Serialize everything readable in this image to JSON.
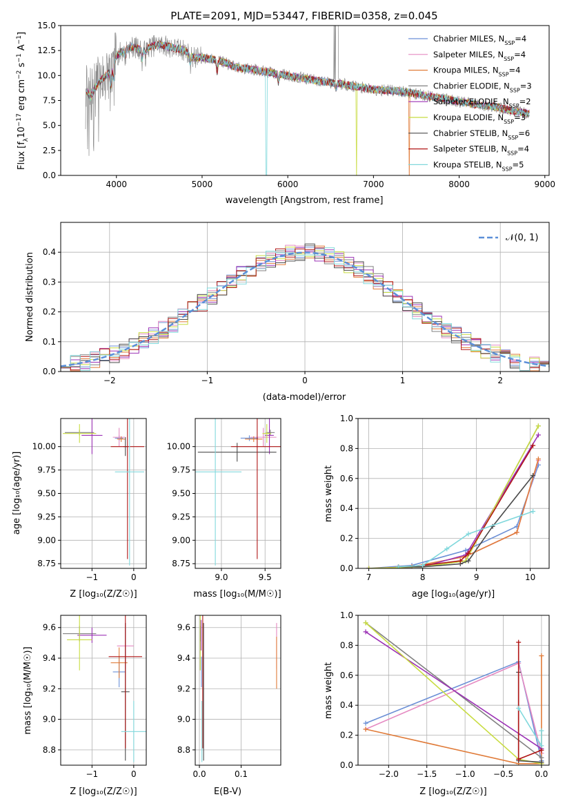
{
  "colors": {
    "chabrier_miles": "#6b8fd6",
    "salpeter_miles": "#e58ac2",
    "kroupa_miles": "#e07b39",
    "chabrier_elodie": "#808080",
    "salpeter_elodie": "#9b30b5",
    "kroupa_elodie": "#c8dc40",
    "chabrier_stelib": "#4a4a4a",
    "salpeter_stelib": "#b01515",
    "kroupa_stelib": "#80d8dc",
    "normal_curve": "#5b8fd8"
  },
  "chart_data": [
    {
      "id": "spectrum",
      "type": "line",
      "title": "PLATE=2091, MJD=53447, FIBERID=0358, z=0.045",
      "xlabel": "wavelength [Angstrom, rest frame]",
      "ylabel_parts": [
        "Flux [f",
        "λ",
        "10",
        "−17",
        " erg cm",
        "−2",
        " s",
        "−1",
        " A",
        "−1",
        "]"
      ],
      "xlim": [
        3350,
        9050
      ],
      "ylim": [
        0,
        15
      ],
      "xticks": [
        "4000",
        "5000",
        "6000",
        "7000",
        "8000",
        "9000"
      ],
      "yticks": [
        "0.0",
        "2.5",
        "5.0",
        "7.5",
        "10.0",
        "12.5",
        "15.0"
      ],
      "legend": [
        {
          "name": "Chabrier MILES, N",
          "sub": "SSP",
          "eq": "=4",
          "color": "#6b8fd6"
        },
        {
          "name": "Salpeter MILES, N",
          "sub": "SSP",
          "eq": "=4",
          "color": "#e58ac2"
        },
        {
          "name": "Kroupa MILES, N",
          "sub": "SSP",
          "eq": "=4",
          "color": "#e07b39"
        },
        {
          "name": "Chabrier ELODIE, N",
          "sub": "SSP",
          "eq": "=3",
          "color": "#808080"
        },
        {
          "name": "Salpeter ELODIE, N",
          "sub": "SSP",
          "eq": "=2",
          "color": "#9b30b5"
        },
        {
          "name": "Kroupa ELODIE, N",
          "sub": "SSP",
          "eq": "=3",
          "color": "#c8dc40"
        },
        {
          "name": "Chabrier STELIB, N",
          "sub": "SSP",
          "eq": "=6",
          "color": "#4a4a4a"
        },
        {
          "name": "Salpeter STELIB, N",
          "sub": "SSP",
          "eq": "=4",
          "color": "#b01515"
        },
        {
          "name": "Kroupa STELIB, N",
          "sub": "SSP",
          "eq": "=5",
          "color": "#80d8dc"
        }
      ],
      "model_continuum": [
        [
          3650,
          8.5
        ],
        [
          3700,
          7.8
        ],
        [
          3750,
          8.8
        ],
        [
          3850,
          9.8
        ],
        [
          3950,
          10.5
        ],
        [
          4000,
          12.0
        ],
        [
          4100,
          12.6
        ],
        [
          4200,
          12.9
        ],
        [
          4300,
          12.5
        ],
        [
          4400,
          12.9
        ],
        [
          4500,
          13.1
        ],
        [
          4600,
          12.9
        ],
        [
          4700,
          12.7
        ],
        [
          4800,
          12.5
        ],
        [
          4900,
          11.8
        ],
        [
          5000,
          11.8
        ],
        [
          5200,
          11.5
        ],
        [
          5400,
          10.8
        ],
        [
          5600,
          10.6
        ],
        [
          5800,
          10.3
        ],
        [
          6000,
          10.0
        ],
        [
          6200,
          9.7
        ],
        [
          6400,
          9.4
        ],
        [
          6600,
          9.2
        ],
        [
          6800,
          8.9
        ],
        [
          7000,
          8.6
        ],
        [
          7200,
          8.5
        ],
        [
          7400,
          8.3
        ],
        [
          7600,
          8.0
        ],
        [
          7800,
          7.7
        ],
        [
          8000,
          7.4
        ],
        [
          8200,
          7.1
        ],
        [
          8400,
          6.9
        ],
        [
          8600,
          6.5
        ],
        [
          8800,
          6.2
        ]
      ]
    },
    {
      "id": "residuals",
      "type": "histogram",
      "xlabel": "(data-model)/error",
      "ylabel": "Normed distribution",
      "xlim": [
        -2.5,
        2.5
      ],
      "ylim": [
        0,
        0.5
      ],
      "xticks": [
        "−2",
        "−1",
        "0",
        "1",
        "2"
      ],
      "yticks": [
        "0.0",
        "0.1",
        "0.2",
        "0.3",
        "0.4"
      ],
      "legend": [
        {
          "name": "𝒩(0, 1)",
          "style": "dashed",
          "color": "#5b8fd8"
        }
      ],
      "bin_width": 0.1
    },
    {
      "id": "age-vs-Z",
      "type": "scatter",
      "xlabel": "Z [log₁₀(Z/Z☉)]",
      "ylabel": "age  [log₁₀(age/yr)]",
      "xlim": [
        -1.75,
        0.3
      ],
      "ylim": [
        8.7,
        10.3
      ],
      "xticks": [
        "−1",
        "0"
      ],
      "yticks": [
        "8.75",
        "9.00",
        "9.25",
        "9.50",
        "9.75",
        "10.00"
      ],
      "points": [
        {
          "series": "Chabrier MILES",
          "x": -0.35,
          "y": 10.09,
          "xerr": 0.1,
          "yerr": 0.03,
          "color": "#6b8fd6"
        },
        {
          "series": "Salpeter MILES",
          "x": -0.35,
          "y": 10.1,
          "xerr": 0.15,
          "yerr": 0.1,
          "color": "#e58ac2"
        },
        {
          "series": "Kroupa MILES",
          "x": -0.3,
          "y": 10.08,
          "xerr": 0.1,
          "yerr": 0.03,
          "color": "#e07b39"
        },
        {
          "series": "Chabrier ELODIE",
          "x": -1.3,
          "y": 10.15,
          "xerr": 0.35,
          "yerr": 0.03,
          "color": "#808080"
        },
        {
          "series": "Salpeter ELODIE",
          "x": -1.0,
          "y": 10.12,
          "xerr": 0.25,
          "yerr": 0.2,
          "color": "#9b30b5"
        },
        {
          "series": "Kroupa ELODIE",
          "x": -1.3,
          "y": 10.14,
          "xerr": 0.4,
          "yerr": 0.1,
          "color": "#c8dc40"
        },
        {
          "series": "Chabrier STELIB",
          "x": -0.2,
          "y": 10.0,
          "xerr": 0.05,
          "yerr": 0.1,
          "color": "#4a4a4a"
        },
        {
          "series": "Salpeter STELIB",
          "x": -0.15,
          "y": 10.0,
          "xerr": 0.4,
          "yerr": 1.2,
          "color": "#b01515"
        },
        {
          "series": "Kroupa STELIB",
          "x": -0.1,
          "y": 9.73,
          "xerr": 0.35,
          "yerr": 1.0,
          "color": "#80d8dc"
        }
      ]
    },
    {
      "id": "age-vs-mass",
      "type": "scatter",
      "xlabel": "mass [log₁₀(M/M☉)]",
      "ylabel": "",
      "xlim": [
        8.7,
        9.68
      ],
      "ylim": [
        8.7,
        10.3
      ],
      "xticks": [
        "9.0",
        "9.5"
      ],
      "yticks": [
        "8.75",
        "9.00",
        "9.25",
        "9.50",
        "9.75",
        "10.00"
      ],
      "points": [
        {
          "series": "Chabrier MILES",
          "x": 9.32,
          "y": 10.09,
          "xerr": 0.1,
          "yerr": 0.03,
          "color": "#6b8fd6"
        },
        {
          "series": "Salpeter MILES",
          "x": 9.48,
          "y": 10.1,
          "xerr": 0.15,
          "yerr": 0.1,
          "color": "#e58ac2"
        },
        {
          "series": "Kroupa MILES",
          "x": 9.37,
          "y": 10.08,
          "xerr": 0.1,
          "yerr": 0.03,
          "color": "#e07b39"
        },
        {
          "series": "Chabrier ELODIE",
          "x": 9.56,
          "y": 10.15,
          "xerr": 0.05,
          "yerr": 0.03,
          "color": "#808080"
        },
        {
          "series": "Salpeter ELODIE",
          "x": 9.55,
          "y": 10.12,
          "xerr": 0.05,
          "yerr": 0.2,
          "color": "#9b30b5"
        },
        {
          "series": "Kroupa ELODIE",
          "x": 9.52,
          "y": 10.14,
          "xerr": 0.05,
          "yerr": 0.1,
          "color": "#c8dc40"
        },
        {
          "series": "Chabrier STELIB",
          "x": 9.18,
          "y": 9.94,
          "xerr": 0.45,
          "yerr": 0.1,
          "color": "#4a4a4a"
        },
        {
          "series": "Salpeter STELIB",
          "x": 9.41,
          "y": 10.0,
          "xerr": 0.3,
          "yerr": 1.2,
          "color": "#b01515"
        },
        {
          "series": "Kroupa STELIB",
          "x": 8.93,
          "y": 9.73,
          "xerr": 0.3,
          "yerr": 1.0,
          "color": "#80d8dc"
        }
      ]
    },
    {
      "id": "massweight-vs-age",
      "type": "line",
      "xlabel": "age  [log₁₀(age/yr)]",
      "ylabel": "mass weight",
      "xlim": [
        6.8,
        10.35
      ],
      "ylim": [
        0,
        1
      ],
      "xticks": [
        "7",
        "8",
        "9",
        "10"
      ],
      "yticks": [
        "0.0",
        "0.2",
        "0.4",
        "0.6",
        "0.8",
        "1.0"
      ],
      "series": [
        {
          "name": "Chabrier MILES",
          "color": "#6b8fd6",
          "x": [
            7.0,
            7.8,
            8.8,
            9.75,
            10.15
          ],
          "y": [
            0.0,
            0.02,
            0.12,
            0.28,
            0.69
          ]
        },
        {
          "name": "Salpeter MILES",
          "color": "#e58ac2",
          "x": [
            7.0,
            7.8,
            8.8,
            9.75,
            10.15
          ],
          "y": [
            0.0,
            0.01,
            0.08,
            0.24,
            0.72
          ]
        },
        {
          "name": "Kroupa MILES",
          "color": "#e07b39",
          "x": [
            7.0,
            7.8,
            8.8,
            9.75,
            10.15
          ],
          "y": [
            0.0,
            0.01,
            0.08,
            0.24,
            0.73
          ]
        },
        {
          "name": "Chabrier ELODIE",
          "color": "#808080",
          "x": [
            7.0,
            8.0,
            8.8,
            10.15
          ],
          "y": [
            0.0,
            0.01,
            0.05,
            0.95
          ]
        },
        {
          "name": "Salpeter ELODIE",
          "color": "#9b30b5",
          "x": [
            7.0,
            8.0,
            8.8,
            10.15
          ],
          "y": [
            0.0,
            0.01,
            0.09,
            0.89
          ]
        },
        {
          "name": "Kroupa ELODIE",
          "color": "#c8dc40",
          "x": [
            7.0,
            8.0,
            8.8,
            10.15
          ],
          "y": [
            0.0,
            0.01,
            0.05,
            0.95
          ]
        },
        {
          "name": "Chabrier STELIB",
          "color": "#4a4a4a",
          "x": [
            7.55,
            8.0,
            8.7,
            8.85,
            9.3,
            10.05
          ],
          "y": [
            0.01,
            0.01,
            0.03,
            0.05,
            0.28,
            0.62
          ]
        },
        {
          "name": "Salpeter STELIB",
          "color": "#b01515",
          "x": [
            7.55,
            8.0,
            8.7,
            8.85,
            10.05
          ],
          "y": [
            0.01,
            0.02,
            0.05,
            0.1,
            0.82
          ]
        },
        {
          "name": "Kroupa STELIB",
          "color": "#80d8dc",
          "x": [
            7.55,
            8.0,
            8.45,
            8.85,
            10.05
          ],
          "y": [
            0.01,
            0.02,
            0.13,
            0.23,
            0.38
          ]
        }
      ]
    },
    {
      "id": "mass-vs-Z",
      "type": "scatter",
      "xlabel": "Z [log₁₀(Z/Z☉)]",
      "ylabel": "mass [log₁₀(M/M☉)]",
      "xlim": [
        -1.75,
        0.3
      ],
      "ylim": [
        8.7,
        9.68
      ],
      "xticks": [
        "−1",
        "0"
      ],
      "yticks": [
        "8.8",
        "9.0",
        "9.2",
        "9.4",
        "9.6"
      ],
      "points": [
        {
          "series": "Chabrier MILES",
          "x": -0.35,
          "y": 9.31,
          "xerr": 0.15,
          "yerr": 0.1,
          "color": "#6b8fd6"
        },
        {
          "series": "Salpeter MILES",
          "x": -0.2,
          "y": 9.48,
          "xerr": 0.2,
          "yerr": 0.15,
          "color": "#e58ac2"
        },
        {
          "series": "Kroupa MILES",
          "x": -0.35,
          "y": 9.37,
          "xerr": 0.2,
          "yerr": 0.1,
          "color": "#e07b39"
        },
        {
          "series": "Chabrier ELODIE",
          "x": -1.3,
          "y": 9.56,
          "xerr": 0.4,
          "yerr": 0.05,
          "color": "#808080"
        },
        {
          "series": "Salpeter ELODIE",
          "x": -1.0,
          "y": 9.55,
          "xerr": 0.35,
          "yerr": 0.05,
          "color": "#9b30b5"
        },
        {
          "series": "Kroupa ELODIE",
          "x": -1.3,
          "y": 9.52,
          "xerr": 0.3,
          "yerr": 0.2,
          "color": "#c8dc40"
        },
        {
          "series": "Chabrier STELIB",
          "x": -0.2,
          "y": 9.18,
          "xerr": 0.1,
          "yerr": 0.45,
          "color": "#4a4a4a"
        },
        {
          "series": "Salpeter STELIB",
          "x": -0.2,
          "y": 9.41,
          "xerr": 0.4,
          "yerr": 0.6,
          "color": "#b01515"
        },
        {
          "series": "Kroupa STELIB",
          "x": 0.0,
          "y": 8.92,
          "xerr": 0.3,
          "yerr": 0.2,
          "color": "#80d8dc"
        }
      ]
    },
    {
      "id": "mass-vs-EBV",
      "type": "scatter",
      "xlabel": "E(B-V)",
      "ylabel": "",
      "xlim": [
        -0.01,
        0.195
      ],
      "ylim": [
        8.7,
        9.68
      ],
      "xticks": [
        "0.0",
        "0.1"
      ],
      "yticks": [
        "8.8",
        "9.0",
        "9.2",
        "9.4",
        "9.6"
      ],
      "points": [
        {
          "series": "Chabrier MILES",
          "x": 0.005,
          "y": 9.31,
          "xerr": 0,
          "yerr": 0.1,
          "color": "#6b8fd6"
        },
        {
          "series": "Salpeter MILES",
          "x": 0.185,
          "y": 9.48,
          "xerr": 0,
          "yerr": 0.15,
          "color": "#e58ac2"
        },
        {
          "series": "Kroupa MILES",
          "x": 0.185,
          "y": 9.37,
          "xerr": 0,
          "yerr": 0.17,
          "color": "#e07b39"
        },
        {
          "series": "Chabrier ELODIE",
          "x": 0.003,
          "y": 9.56,
          "xerr": 0,
          "yerr": 0.05,
          "color": "#808080"
        },
        {
          "series": "Salpeter ELODIE",
          "x": 0.004,
          "y": 9.55,
          "xerr": 0,
          "yerr": 0.1,
          "color": "#9b30b5"
        },
        {
          "series": "Kroupa ELODIE",
          "x": 0.002,
          "y": 9.52,
          "xerr": 0,
          "yerr": 0.2,
          "color": "#c8dc40"
        },
        {
          "series": "Chabrier STELIB",
          "x": 0.01,
          "y": 9.18,
          "xerr": 0,
          "yerr": 0.45,
          "color": "#4a4a4a"
        },
        {
          "series": "Salpeter STELIB",
          "x": 0.008,
          "y": 9.41,
          "xerr": 0,
          "yerr": 0.6,
          "color": "#b01515"
        },
        {
          "series": "Kroupa STELIB",
          "x": 0.006,
          "y": 8.92,
          "xerr": 0,
          "yerr": 0.2,
          "color": "#80d8dc"
        }
      ]
    },
    {
      "id": "massweight-vs-Z",
      "type": "line",
      "xlabel": "Z [log₁₀(Z/Z☉)]",
      "ylabel": "mass weight",
      "xlim": [
        -2.4,
        0.1
      ],
      "ylim": [
        0,
        1
      ],
      "xticks": [
        "−2.0",
        "−1.5",
        "−1.0",
        "−0.5",
        "0.0"
      ],
      "yticks": [
        "0.0",
        "0.2",
        "0.4",
        "0.6",
        "0.8",
        "1.0"
      ],
      "series": [
        {
          "name": "Chabrier MILES",
          "color": "#6b8fd6",
          "x": [
            -2.3,
            -0.3,
            0.0
          ],
          "y": [
            0.28,
            0.69,
            0.03
          ]
        },
        {
          "name": "Salpeter MILES",
          "color": "#e58ac2",
          "x": [
            -2.3,
            -0.3,
            0.0
          ],
          "y": [
            0.24,
            0.68,
            0.08
          ]
        },
        {
          "name": "Kroupa MILES",
          "color": "#e07b39",
          "x": [
            -2.3,
            -0.3,
            0.0,
            0.0
          ],
          "y": [
            0.24,
            0.01,
            0.01,
            0.73
          ]
        },
        {
          "name": "Chabrier ELODIE",
          "color": "#808080",
          "x": [
            -2.3,
            0.0
          ],
          "y": [
            0.95,
            0.05
          ]
        },
        {
          "name": "Salpeter ELODIE",
          "color": "#9b30b5",
          "x": [
            -2.3,
            0.0
          ],
          "y": [
            0.89,
            0.11
          ]
        },
        {
          "name": "Kroupa ELODIE",
          "color": "#c8dc40",
          "x": [
            -2.3,
            -0.3,
            0.0
          ],
          "y": [
            0.95,
            0.04,
            0.01
          ]
        },
        {
          "name": "Chabrier STELIB",
          "color": "#4a4a4a",
          "x": [
            -0.3,
            -0.3,
            0.0
          ],
          "y": [
            0.62,
            0.03,
            0.02
          ]
        },
        {
          "name": "Salpeter STELIB",
          "color": "#b01515",
          "x": [
            -0.3,
            -0.3,
            0.0
          ],
          "y": [
            0.82,
            0.04,
            0.1
          ]
        },
        {
          "name": "Kroupa STELIB",
          "color": "#80d8dc",
          "x": [
            -0.3,
            0.0,
            0.0
          ],
          "y": [
            0.38,
            0.13,
            0.23
          ]
        }
      ]
    }
  ]
}
